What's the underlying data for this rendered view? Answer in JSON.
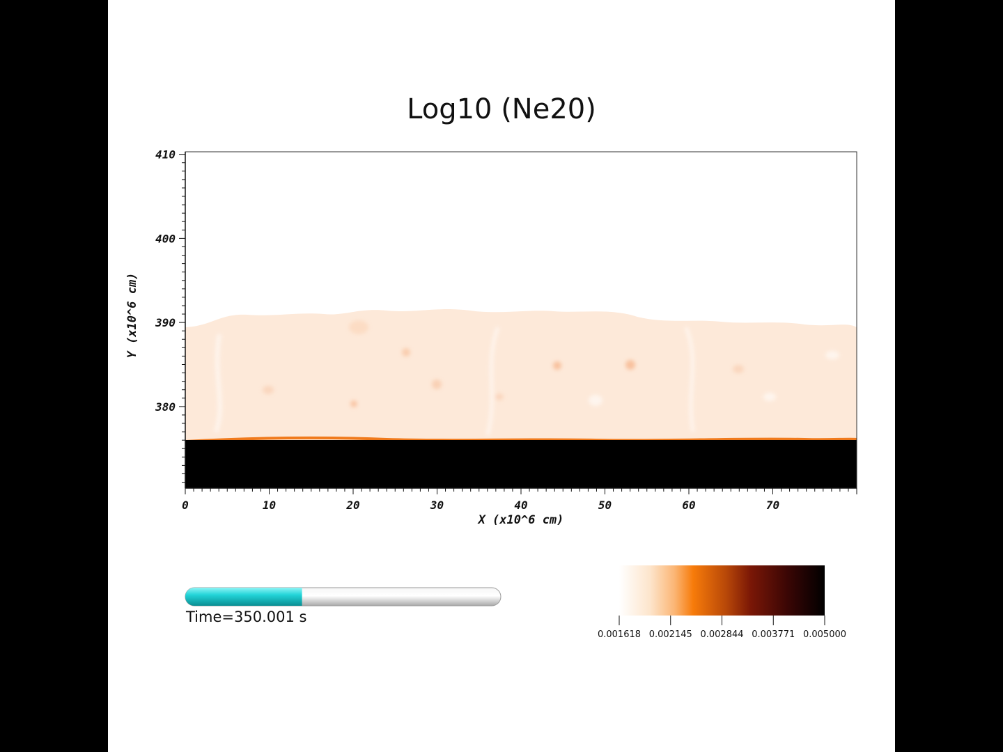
{
  "chart_data": {
    "type": "heatmap",
    "title": "Log10 (Ne20)",
    "xlabel": "X (x10^6 cm)",
    "ylabel": "Y (x10^6 cm)",
    "xlim": [
      0,
      80
    ],
    "ylim": [
      370.3,
      410.3
    ],
    "x_ticks": [
      0,
      10,
      20,
      30,
      40,
      50,
      60,
      70
    ],
    "y_ticks": [
      380,
      390,
      400,
      410
    ],
    "colorbar": {
      "tick_labels": [
        "0.001618",
        "0.002145",
        "0.002844",
        "0.003771",
        "0.005000"
      ],
      "tick_values": [
        0.001618,
        0.002145,
        0.002844,
        0.003771,
        0.005
      ],
      "colors": [
        "#ffffff",
        "#fde5cc",
        "#fbb574",
        "#f77b0a",
        "#b84808",
        "#7a1706",
        "#3a0605",
        "#000000"
      ]
    },
    "regions": {
      "burning_layer_top_y": 376.0,
      "burning_layer_color": "#000000",
      "convective_zone_color": "#fde9d9",
      "convective_top_y_approx": 390.0,
      "interface_color": "#f07a1c"
    }
  },
  "time": {
    "label": "Time=350.001 s",
    "progress_fraction": 0.37,
    "fill_color": "#1ec8cc"
  }
}
